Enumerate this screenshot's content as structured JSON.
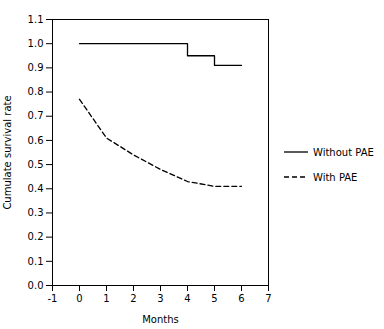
{
  "chart_data": {
    "type": "line",
    "xlabel": "Months",
    "ylabel": "Cumulate survival rate",
    "xlim": [
      -1,
      7
    ],
    "ylim": [
      0.0,
      1.1
    ],
    "xticks": [
      -1,
      0,
      1,
      2,
      3,
      4,
      5,
      6,
      7
    ],
    "yticks": [
      {
        "value": 0,
        "label": "0.0"
      },
      0.1,
      0.2,
      0.3,
      0.4,
      0.5,
      0.6,
      0.7,
      0.8,
      0.9,
      {
        "value": 1,
        "label": "1.0"
      },
      1.1
    ],
    "legend": "right",
    "series": [
      {
        "name": "Without PAE",
        "color": "#000000",
        "line_style": "solid",
        "x": [
          0,
          4,
          4,
          5,
          5,
          6
        ],
        "values": [
          1.0,
          1.0,
          0.95,
          0.95,
          0.91,
          0.91
        ]
      },
      {
        "name": "With PAE",
        "color": "#000000",
        "line_style": "dashed",
        "x": [
          0,
          0,
          1,
          1,
          2,
          2,
          3,
          3,
          4,
          4,
          5,
          5,
          6
        ],
        "values": [
          0.77,
          0.77,
          0.61,
          0.61,
          0.54,
          0.54,
          0.48,
          0.48,
          0.43,
          0.43,
          0.41,
          0.41,
          0.41
        ]
      }
    ]
  }
}
